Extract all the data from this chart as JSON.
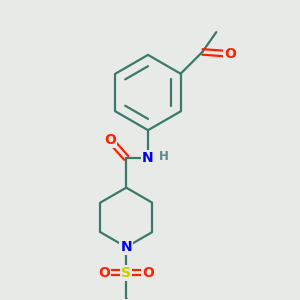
{
  "bg_color": "#e8eae8",
  "bond_color": "#3a7a6a",
  "bond_width": 1.6,
  "atom_colors": {
    "O": "#ff2200",
    "N": "#0000ee",
    "S": "#cccc00",
    "H": "#5a8a8a",
    "C": "#3a7a6a"
  },
  "font_size_atom": 10,
  "font_size_H": 8.5
}
